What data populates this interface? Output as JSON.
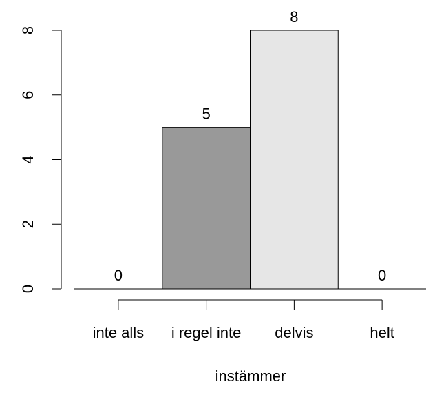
{
  "chart_data": {
    "type": "bar",
    "x_label": "instämmer",
    "categories": [
      "inte alls",
      "i regel inte",
      "delvis",
      "helt"
    ],
    "values": [
      0,
      5,
      8,
      0
    ],
    "colors": [
      "#4d4d4d",
      "#999999",
      "#e6e6e6",
      "#ffffff"
    ],
    "ylim": [
      0,
      8
    ],
    "yticks": [
      0,
      2,
      4,
      6,
      8
    ],
    "grid": false
  }
}
